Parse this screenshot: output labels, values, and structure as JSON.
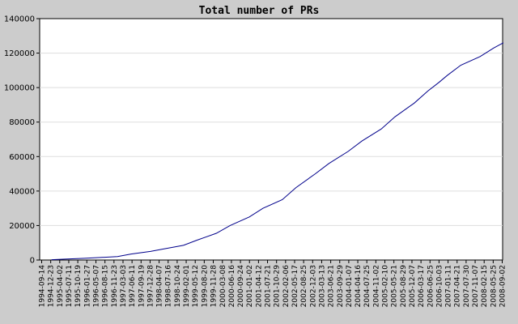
{
  "chart_data": {
    "type": "line",
    "title": "Total number of PRs",
    "xlabel": "",
    "ylabel": "",
    "ylim": [
      0,
      140000
    ],
    "yticks": [
      0,
      20000,
      40000,
      60000,
      80000,
      100000,
      120000,
      140000
    ],
    "ytick_labels": [
      "0",
      "20000",
      "40000",
      "60000",
      "80000",
      "100000",
      "120000",
      "140000"
    ],
    "xtick_labels": [
      "1994-09-14",
      "1994-12-23",
      "1995-04-02",
      "1995-07-11",
      "1995-10-19",
      "1996-01-27",
      "1996-05-07",
      "1996-08-15",
      "1996-11-23",
      "1997-03-03",
      "1997-06-11",
      "1997-09-19",
      "1997-12-28",
      "1998-04-07",
      "1998-07-16",
      "1998-10-24",
      "1999-02-01",
      "1999-05-12",
      "1999-08-20",
      "1999-11-28",
      "2000-03-08",
      "2000-06-16",
      "2000-09-24",
      "2001-01-02",
      "2001-04-12",
      "2001-07-21",
      "2001-10-29",
      "2002-02-06",
      "2002-05-17",
      "2002-08-25",
      "2002-12-03",
      "2003-03-13",
      "2003-06-21",
      "2003-09-29",
      "2004-01-07",
      "2004-04-16",
      "2004-07-25",
      "2004-11-02",
      "2005-02-10",
      "2005-05-21",
      "2005-08-29",
      "2005-12-07",
      "2006-03-17",
      "2006-06-25",
      "2006-10-03",
      "2007-01-11",
      "2007-04-21",
      "2007-07-30",
      "2007-11-07",
      "2008-02-15",
      "2008-05-25",
      "2008-09-02"
    ],
    "grid": true,
    "legend": "none",
    "line_color": "#00008b",
    "series": [
      {
        "x": [
          "1995-01-01",
          "1995-06-01",
          "1996-01-01",
          "1996-06-01",
          "1997-01-01",
          "1997-06-01",
          "1998-01-01",
          "1998-06-01",
          "1999-01-01",
          "1999-06-01",
          "2000-01-01",
          "2000-06-01",
          "2001-01-01",
          "2001-06-01",
          "2002-01-01",
          "2002-06-01",
          "2003-01-01",
          "2003-06-01",
          "2004-01-01",
          "2004-06-01",
          "2005-01-01",
          "2005-06-01",
          "2006-01-01",
          "2006-06-01",
          "2006-10-01",
          "2007-01-01",
          "2007-06-01",
          "2008-01-01",
          "2008-06-01",
          "2008-09-15"
        ],
        "y": [
          200,
          500,
          1000,
          1400,
          2000,
          3500,
          5000,
          6500,
          8500,
          11500,
          15500,
          20000,
          25000,
          30000,
          35000,
          42000,
          50000,
          56000,
          63000,
          69000,
          76000,
          83000,
          91000,
          98000,
          103000,
          107000,
          113000,
          118000,
          123000,
          126000
        ]
      }
    ]
  }
}
